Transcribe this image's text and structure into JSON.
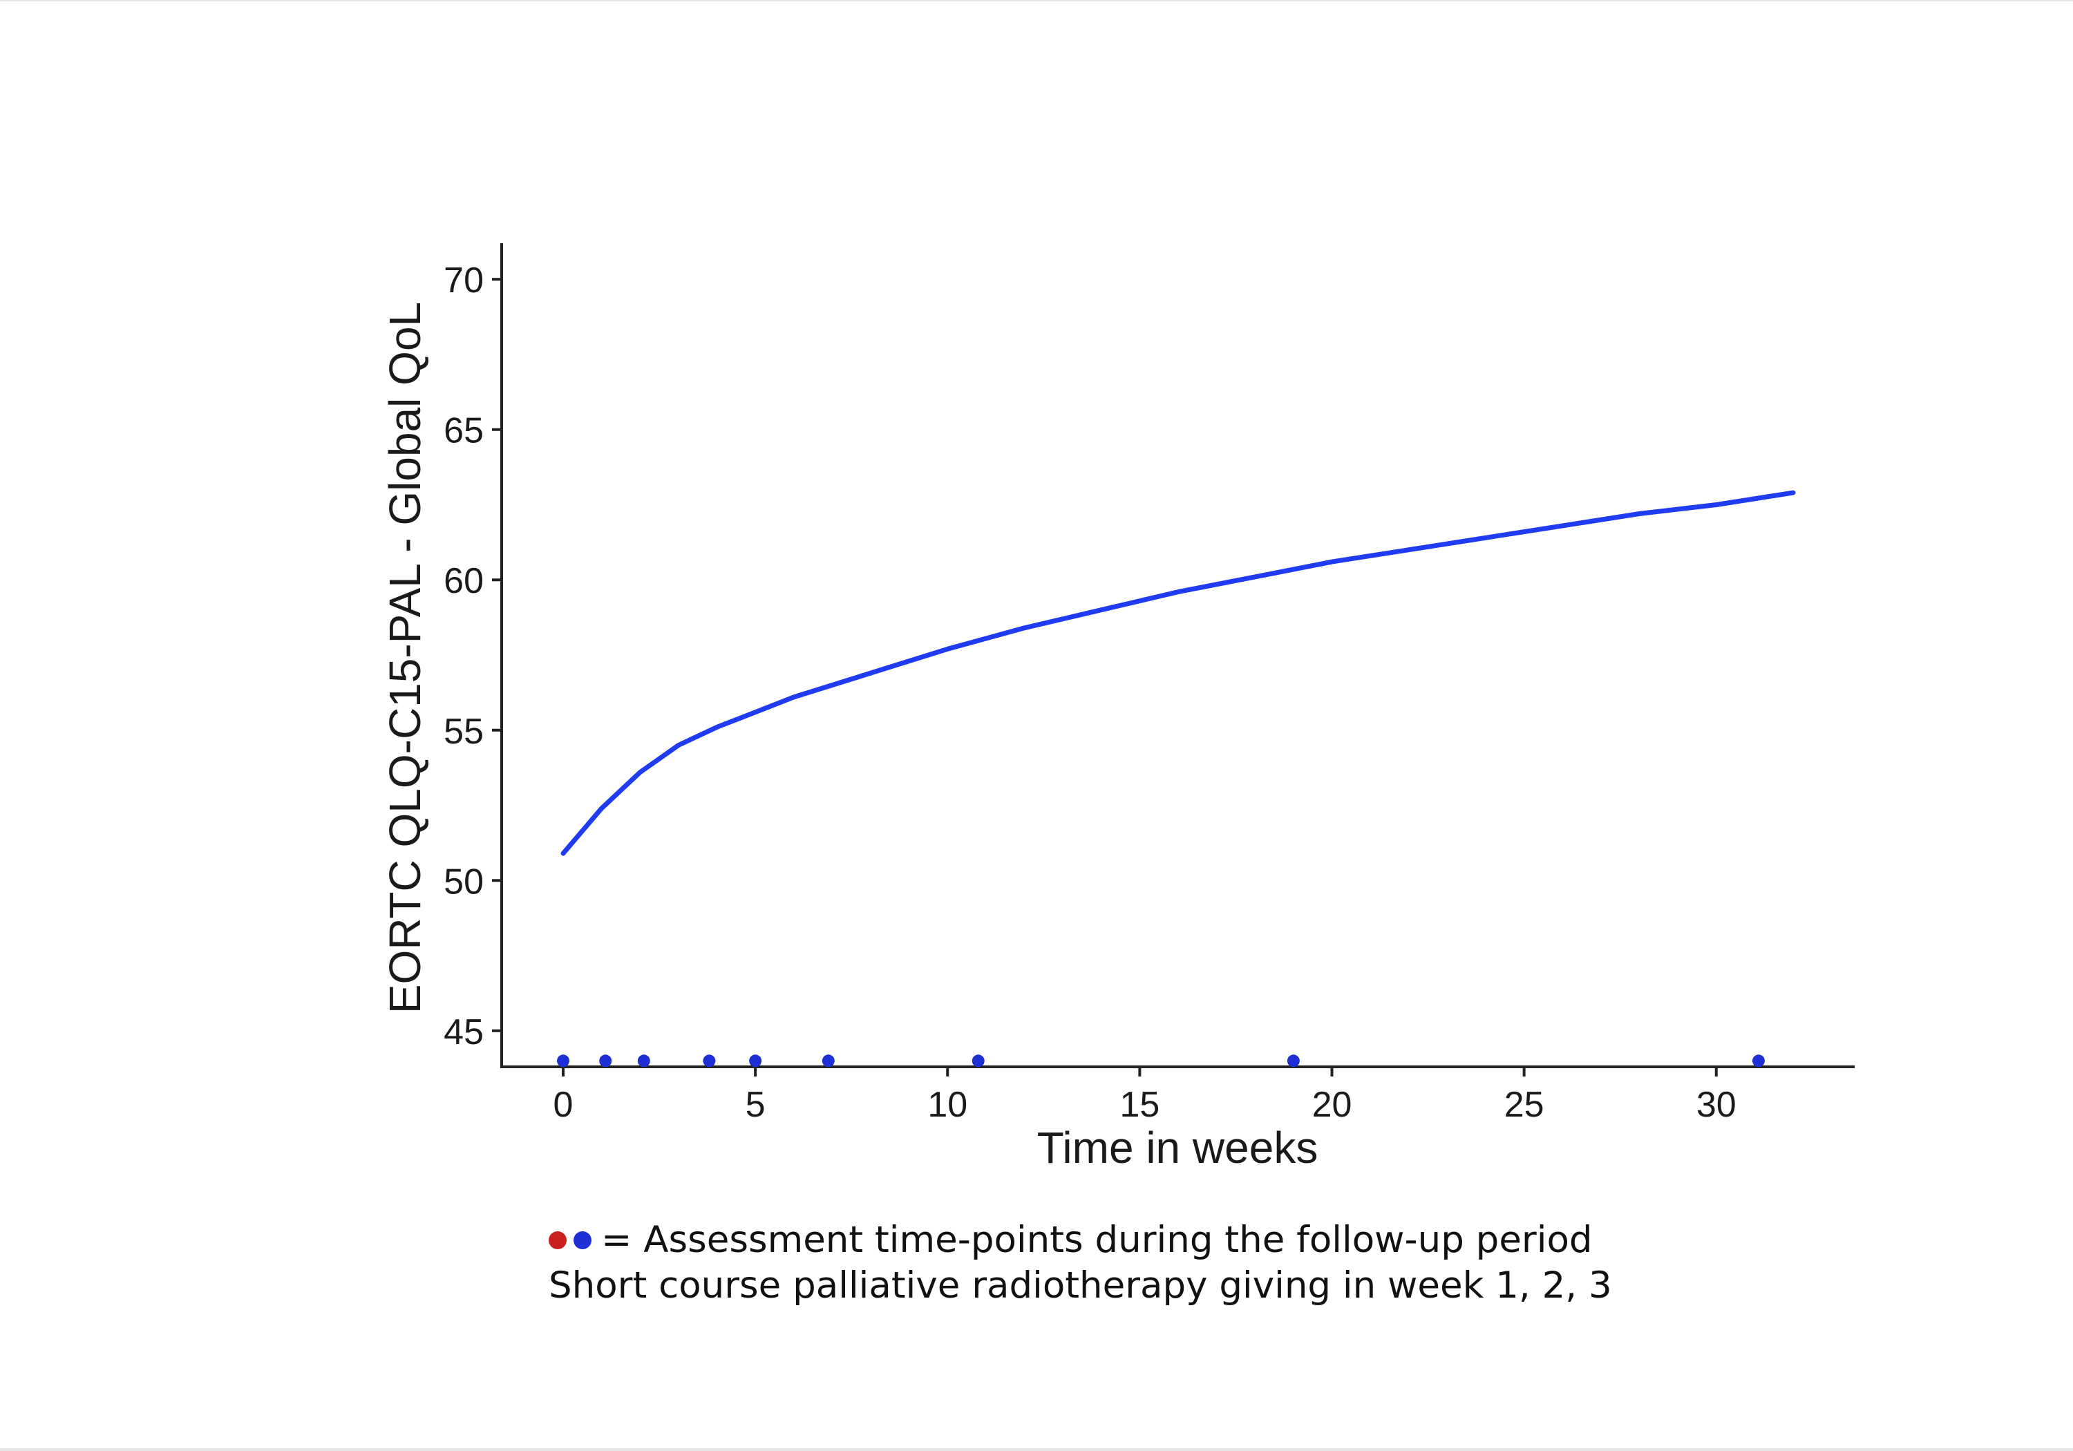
{
  "chart_data": {
    "type": "line",
    "xlabel": "Time in weeks",
    "ylabel": "EORTC QLQ-C15-PAL - Global QoL",
    "xlim": [
      -1.6,
      33.6
    ],
    "ylim": [
      43.8,
      71.2
    ],
    "x_ticks": [
      "0",
      "5",
      "10",
      "15",
      "20",
      "25",
      "30"
    ],
    "y_ticks": [
      "45",
      "50",
      "55",
      "60",
      "65",
      "70"
    ],
    "grid": false,
    "series": [
      {
        "color": "#1f3cf2",
        "x": [
          0,
          1,
          2,
          3,
          4,
          5,
          6,
          7,
          8,
          10,
          12,
          14,
          16,
          18,
          20,
          22,
          24,
          26,
          28,
          30,
          32
        ],
        "values": [
          50.9,
          52.4,
          53.6,
          54.5,
          55.1,
          55.6,
          56.1,
          56.5,
          56.9,
          57.7,
          58.4,
          59.0,
          59.6,
          60.1,
          60.6,
          61.0,
          61.4,
          61.8,
          62.2,
          62.5,
          62.9
        ]
      }
    ],
    "assessment_points": {
      "color": "#1f2fd6",
      "y": 44,
      "x": [
        0,
        1.1,
        2.1,
        3.8,
        5.0,
        6.9,
        10.8,
        19.0,
        31.1
      ]
    }
  },
  "caption": {
    "line1": "= Assessment time-points during the follow-up period",
    "line2": "Short course palliative radiotherapy giving in week 1, 2, 3",
    "dot_colors": [
      "#cc1f1f",
      "#1f2fd6"
    ]
  }
}
